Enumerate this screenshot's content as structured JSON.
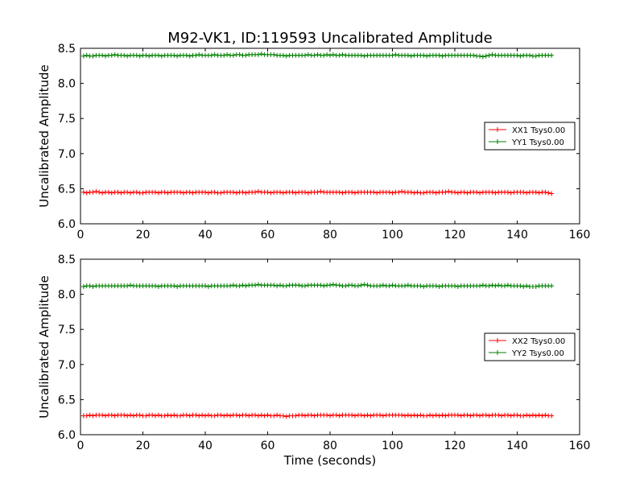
{
  "figure": {
    "title": "M92-VK1, ID:119593 Uncalibrated Amplitude"
  },
  "chart_data": [
    {
      "type": "line",
      "title": "M92-VK1, ID:119593 Uncalibrated Amplitude",
      "xlabel": "",
      "ylabel": "Uncalibrated Amplitude",
      "xlim": [
        0,
        160
      ],
      "ylim": [
        6.0,
        8.5
      ],
      "xticks": [
        "0",
        "20",
        "40",
        "60",
        "80",
        "100",
        "120",
        "140",
        "160"
      ],
      "yticks": [
        "6.0",
        "6.5",
        "7.0",
        "7.5",
        "8.0",
        "8.5"
      ],
      "grid": false,
      "legend_position": "center-right",
      "x_range": [
        1,
        151
      ],
      "series": [
        {
          "name": "XX1 Tsys0.00",
          "color": "#ff0000",
          "marker": "+",
          "values": [
            6.45,
            6.44,
            6.45,
            6.45,
            6.46,
            6.45,
            6.44,
            6.45,
            6.45,
            6.44,
            6.45,
            6.45,
            6.44,
            6.45,
            6.45,
            6.44,
            6.45,
            6.45,
            6.44,
            6.44,
            6.45,
            6.45,
            6.45,
            6.45,
            6.44,
            6.45,
            6.45,
            6.44,
            6.45,
            6.45,
            6.45,
            6.45,
            6.44,
            6.45,
            6.45,
            6.44,
            6.45,
            6.45,
            6.45,
            6.45,
            6.44,
            6.45,
            6.45,
            6.44,
            6.44,
            6.45,
            6.45,
            6.45,
            6.45,
            6.44,
            6.45,
            6.45,
            6.44,
            6.45,
            6.45,
            6.45,
            6.46,
            6.45,
            6.45,
            6.45,
            6.44,
            6.45,
            6.45,
            6.45,
            6.44,
            6.45,
            6.45,
            6.45,
            6.44,
            6.45,
            6.45,
            6.45,
            6.44,
            6.45,
            6.45,
            6.45,
            6.46,
            6.45,
            6.45,
            6.45,
            6.45,
            6.45,
            6.45,
            6.44,
            6.45,
            6.45,
            6.45,
            6.44,
            6.45,
            6.45,
            6.45,
            6.45,
            6.45,
            6.45,
            6.44,
            6.45,
            6.45,
            6.45,
            6.45,
            6.44,
            6.45,
            6.45,
            6.46,
            6.45,
            6.45,
            6.45,
            6.44,
            6.45,
            6.44,
            6.44,
            6.45,
            6.45,
            6.45,
            6.44,
            6.45,
            6.45,
            6.45,
            6.46,
            6.45,
            6.45,
            6.44,
            6.45,
            6.45,
            6.44,
            6.45,
            6.45,
            6.45,
            6.44,
            6.45,
            6.45,
            6.45,
            6.45,
            6.44,
            6.45,
            6.45,
            6.45,
            6.45,
            6.44,
            6.45,
            6.45,
            6.45,
            6.45,
            6.44,
            6.45,
            6.45,
            6.45,
            6.44,
            6.45,
            6.45,
            6.44,
            6.43
          ]
        },
        {
          "name": "YY1 Tsys0.00",
          "color": "#008000",
          "marker": "+",
          "values": [
            8.39,
            8.4,
            8.39,
            8.39,
            8.4,
            8.4,
            8.4,
            8.39,
            8.4,
            8.4,
            8.41,
            8.4,
            8.4,
            8.4,
            8.39,
            8.4,
            8.4,
            8.4,
            8.39,
            8.4,
            8.4,
            8.39,
            8.4,
            8.4,
            8.4,
            8.39,
            8.4,
            8.4,
            8.4,
            8.4,
            8.39,
            8.4,
            8.4,
            8.4,
            8.39,
            8.4,
            8.4,
            8.41,
            8.4,
            8.4,
            8.4,
            8.4,
            8.41,
            8.4,
            8.4,
            8.4,
            8.41,
            8.4,
            8.4,
            8.41,
            8.41,
            8.4,
            8.4,
            8.41,
            8.41,
            8.41,
            8.41,
            8.42,
            8.41,
            8.41,
            8.41,
            8.41,
            8.4,
            8.4,
            8.4,
            8.39,
            8.4,
            8.4,
            8.4,
            8.4,
            8.4,
            8.4,
            8.41,
            8.4,
            8.4,
            8.41,
            8.4,
            8.4,
            8.41,
            8.4,
            8.41,
            8.4,
            8.4,
            8.41,
            8.4,
            8.4,
            8.4,
            8.4,
            8.4,
            8.4,
            8.39,
            8.4,
            8.4,
            8.4,
            8.4,
            8.4,
            8.4,
            8.4,
            8.4,
            8.4,
            8.41,
            8.4,
            8.4,
            8.4,
            8.4,
            8.39,
            8.4,
            8.4,
            8.4,
            8.4,
            8.39,
            8.4,
            8.4,
            8.4,
            8.4,
            8.39,
            8.4,
            8.4,
            8.4,
            8.4,
            8.4,
            8.4,
            8.4,
            8.4,
            8.4,
            8.4,
            8.39,
            8.39,
            8.38,
            8.39,
            8.4,
            8.41,
            8.4,
            8.4,
            8.4,
            8.4,
            8.4,
            8.4,
            8.4,
            8.4,
            8.39,
            8.4,
            8.4,
            8.4,
            8.39,
            8.39,
            8.4,
            8.4,
            8.4,
            8.4,
            8.4
          ]
        }
      ]
    },
    {
      "type": "line",
      "xlabel": "Time (seconds)",
      "ylabel": "Uncalibrated Amplitude",
      "xlim": [
        0,
        160
      ],
      "ylim": [
        6.0,
        8.5
      ],
      "xticks": [
        "0",
        "20",
        "40",
        "60",
        "80",
        "100",
        "120",
        "140",
        "160"
      ],
      "yticks": [
        "6.0",
        "6.5",
        "7.0",
        "7.5",
        "8.0",
        "8.5"
      ],
      "grid": false,
      "legend_position": "center-right",
      "x_range": [
        1,
        151
      ],
      "series": [
        {
          "name": "XX2 Tsys0.00",
          "color": "#ff0000",
          "marker": "+",
          "values": [
            6.27,
            6.27,
            6.28,
            6.27,
            6.28,
            6.28,
            6.28,
            6.27,
            6.28,
            6.28,
            6.27,
            6.28,
            6.28,
            6.28,
            6.27,
            6.28,
            6.27,
            6.28,
            6.28,
            6.27,
            6.27,
            6.28,
            6.28,
            6.27,
            6.28,
            6.27,
            6.27,
            6.28,
            6.27,
            6.28,
            6.27,
            6.27,
            6.28,
            6.28,
            6.27,
            6.28,
            6.28,
            6.27,
            6.28,
            6.27,
            6.28,
            6.27,
            6.27,
            6.28,
            6.28,
            6.27,
            6.28,
            6.27,
            6.28,
            6.28,
            6.27,
            6.28,
            6.28,
            6.27,
            6.28,
            6.28,
            6.27,
            6.28,
            6.27,
            6.28,
            6.27,
            6.27,
            6.28,
            6.27,
            6.27,
            6.26,
            6.27,
            6.27,
            6.27,
            6.28,
            6.28,
            6.27,
            6.28,
            6.28,
            6.27,
            6.28,
            6.28,
            6.28,
            6.28,
            6.27,
            6.28,
            6.28,
            6.27,
            6.28,
            6.28,
            6.28,
            6.28,
            6.27,
            6.28,
            6.28,
            6.27,
            6.28,
            6.27,
            6.28,
            6.28,
            6.28,
            6.27,
            6.28,
            6.28,
            6.28,
            6.28,
            6.28,
            6.28,
            6.27,
            6.28,
            6.27,
            6.28,
            6.27,
            6.28,
            6.27,
            6.27,
            6.28,
            6.27,
            6.28,
            6.27,
            6.28,
            6.27,
            6.28,
            6.28,
            6.28,
            6.28,
            6.27,
            6.28,
            6.28,
            6.27,
            6.28,
            6.28,
            6.27,
            6.28,
            6.28,
            6.27,
            6.28,
            6.28,
            6.28,
            6.27,
            6.28,
            6.28,
            6.27,
            6.28,
            6.28,
            6.27,
            6.27,
            6.28,
            6.27,
            6.28,
            6.27,
            6.28,
            6.27,
            6.28,
            6.27,
            6.27
          ]
        },
        {
          "name": "YY2 Tsys0.00",
          "color": "#008000",
          "marker": "+",
          "values": [
            8.11,
            8.12,
            8.12,
            8.11,
            8.12,
            8.12,
            8.12,
            8.12,
            8.12,
            8.12,
            8.12,
            8.12,
            8.12,
            8.12,
            8.12,
            8.13,
            8.12,
            8.12,
            8.12,
            8.12,
            8.12,
            8.12,
            8.12,
            8.12,
            8.11,
            8.12,
            8.12,
            8.12,
            8.12,
            8.12,
            8.11,
            8.12,
            8.12,
            8.12,
            8.12,
            8.12,
            8.12,
            8.12,
            8.12,
            8.12,
            8.11,
            8.12,
            8.12,
            8.12,
            8.12,
            8.12,
            8.12,
            8.12,
            8.13,
            8.12,
            8.12,
            8.13,
            8.12,
            8.13,
            8.13,
            8.13,
            8.14,
            8.13,
            8.13,
            8.13,
            8.13,
            8.13,
            8.12,
            8.13,
            8.12,
            8.12,
            8.13,
            8.13,
            8.13,
            8.13,
            8.12,
            8.12,
            8.13,
            8.13,
            8.13,
            8.13,
            8.13,
            8.12,
            8.13,
            8.13,
            8.14,
            8.13,
            8.13,
            8.12,
            8.12,
            8.13,
            8.13,
            8.12,
            8.12,
            8.13,
            8.14,
            8.13,
            8.12,
            8.12,
            8.12,
            8.12,
            8.13,
            8.12,
            8.12,
            8.13,
            8.12,
            8.12,
            8.12,
            8.12,
            8.13,
            8.12,
            8.12,
            8.12,
            8.12,
            8.11,
            8.12,
            8.12,
            8.12,
            8.12,
            8.11,
            8.12,
            8.12,
            8.12,
            8.12,
            8.12,
            8.11,
            8.12,
            8.12,
            8.12,
            8.12,
            8.12,
            8.12,
            8.12,
            8.13,
            8.12,
            8.12,
            8.13,
            8.12,
            8.13,
            8.12,
            8.12,
            8.13,
            8.12,
            8.12,
            8.12,
            8.12,
            8.11,
            8.12,
            8.11,
            8.11,
            8.11,
            8.12,
            8.12,
            8.12,
            8.12,
            8.12
          ]
        }
      ]
    }
  ]
}
